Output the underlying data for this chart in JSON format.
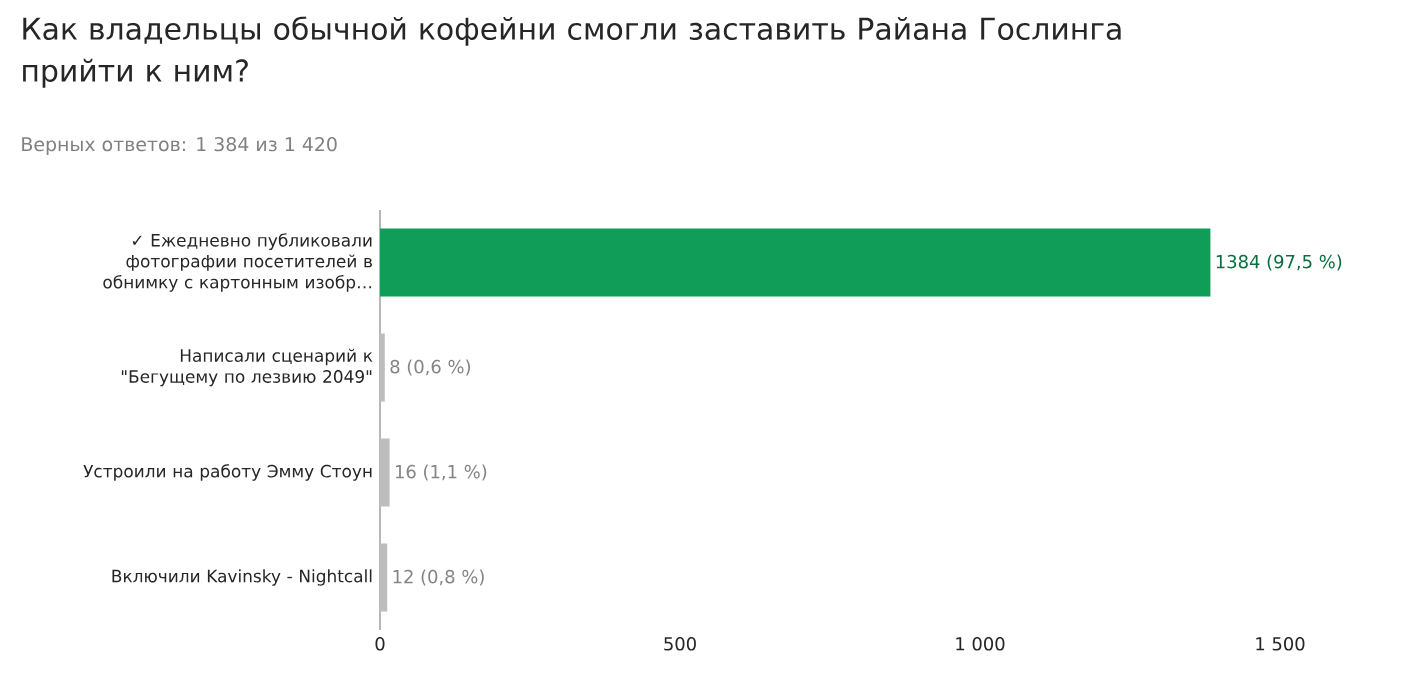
{
  "chart_data": {
    "type": "bar",
    "orientation": "horizontal",
    "title": "Как владельцы обычной кофейни смогли заставить Райана Гослинга прийти к ним?",
    "subtitle": "Верных ответов: 1 384 из 1 420",
    "categories": [
      "✓ Ежедневно публиковали фотографии посетителей в обнимку с картонным изобр…",
      "Написали сценарий к \"Бегущему по лезвию 2049\"",
      "Устроили на работу Эмму Стоун",
      "Включили Kavinsky - Nightcall"
    ],
    "values": [
      1384,
      8,
      16,
      12
    ],
    "colors": [
      "#0f9d58",
      "#bdbdbd",
      "#bdbdbd",
      "#bdbdbd"
    ],
    "value_labels": [
      "1384 (97,5 %)",
      "8 (0,6 %)",
      "16 (1,1 %)",
      "12 (0,8 %)"
    ],
    "xlim": [
      0,
      1500
    ],
    "xticks": [
      0,
      500,
      {
        "value": 1000,
        "label": "1 000"
      },
      {
        "value": 1500,
        "label": "1 500"
      }
    ]
  }
}
